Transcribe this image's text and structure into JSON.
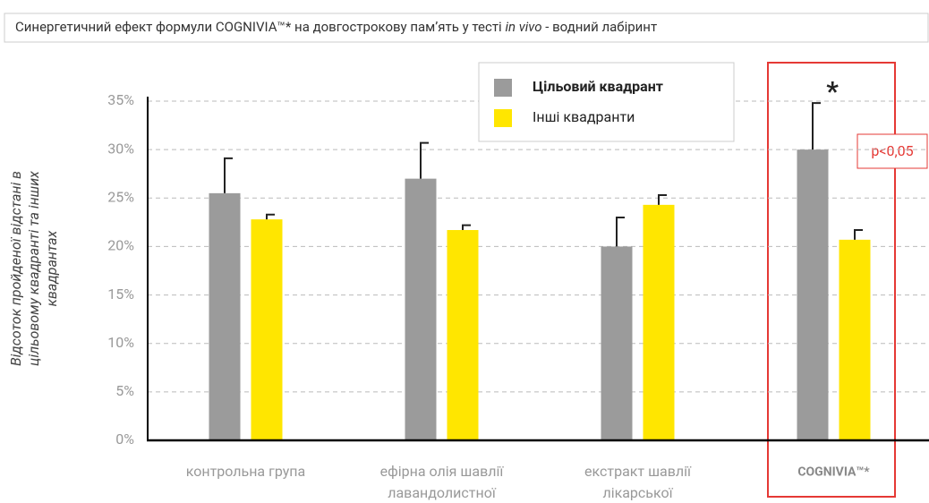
{
  "chart_data": {
    "type": "bar",
    "title": [
      "Синергетичний ефект формули COGNIVIA™* на довгострокову пам’ять у тесті ",
      "in vivo",
      " - водний лабіринт"
    ],
    "ylabel": [
      "Відсоток пройденої відстані в",
      "цільовому квадранті та інших",
      "квадрантах"
    ],
    "categories": [
      "контрольна група",
      "ефірна олія шавлії лавандолистної",
      "екстракт шавлії лікарської",
      "COGNIVIA™*"
    ],
    "series": [
      {
        "name": "Цільовий квадрант",
        "color": "#9b9b9b",
        "values": [
          25.5,
          27,
          20,
          30
        ],
        "errors": [
          3.6,
          3.7,
          3.0,
          4.8
        ]
      },
      {
        "name": "Інші квадранти",
        "color": "#ffe600",
        "values": [
          22.8,
          21.7,
          24.3,
          20.7
        ],
        "errors": [
          0.5,
          0.5,
          1.0,
          1.0
        ]
      }
    ],
    "ylim": [
      0,
      35
    ],
    "yticks": [
      {
        "value": 0,
        "label": "0%"
      },
      {
        "value": 5,
        "label": "5%"
      },
      {
        "value": 10,
        "label": "10%"
      },
      {
        "value": 15,
        "label": "15%"
      },
      {
        "value": 20,
        "label": "20%"
      },
      {
        "value": 25,
        "label": "25%"
      },
      {
        "value": 30,
        "label": "30%"
      },
      {
        "value": 35,
        "label": "35%"
      }
    ],
    "grid": true,
    "annotations": [
      "*",
      "p<0,05"
    ]
  }
}
